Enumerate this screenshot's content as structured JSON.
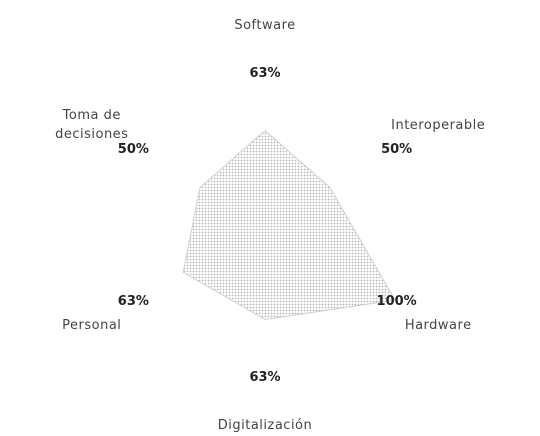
{
  "chart_data": {
    "type": "radar",
    "categories": [
      "Software",
      "Interoperable",
      "Hardware",
      "Digitalización",
      "Personal",
      "Toma de decisiones"
    ],
    "values": [
      63,
      50,
      100,
      63,
      63,
      50
    ],
    "value_labels": [
      "63%",
      "50%",
      "100%",
      "63%",
      "63%",
      "50%"
    ],
    "rlim": [
      0,
      100
    ],
    "color": "#c8c8c8"
  }
}
